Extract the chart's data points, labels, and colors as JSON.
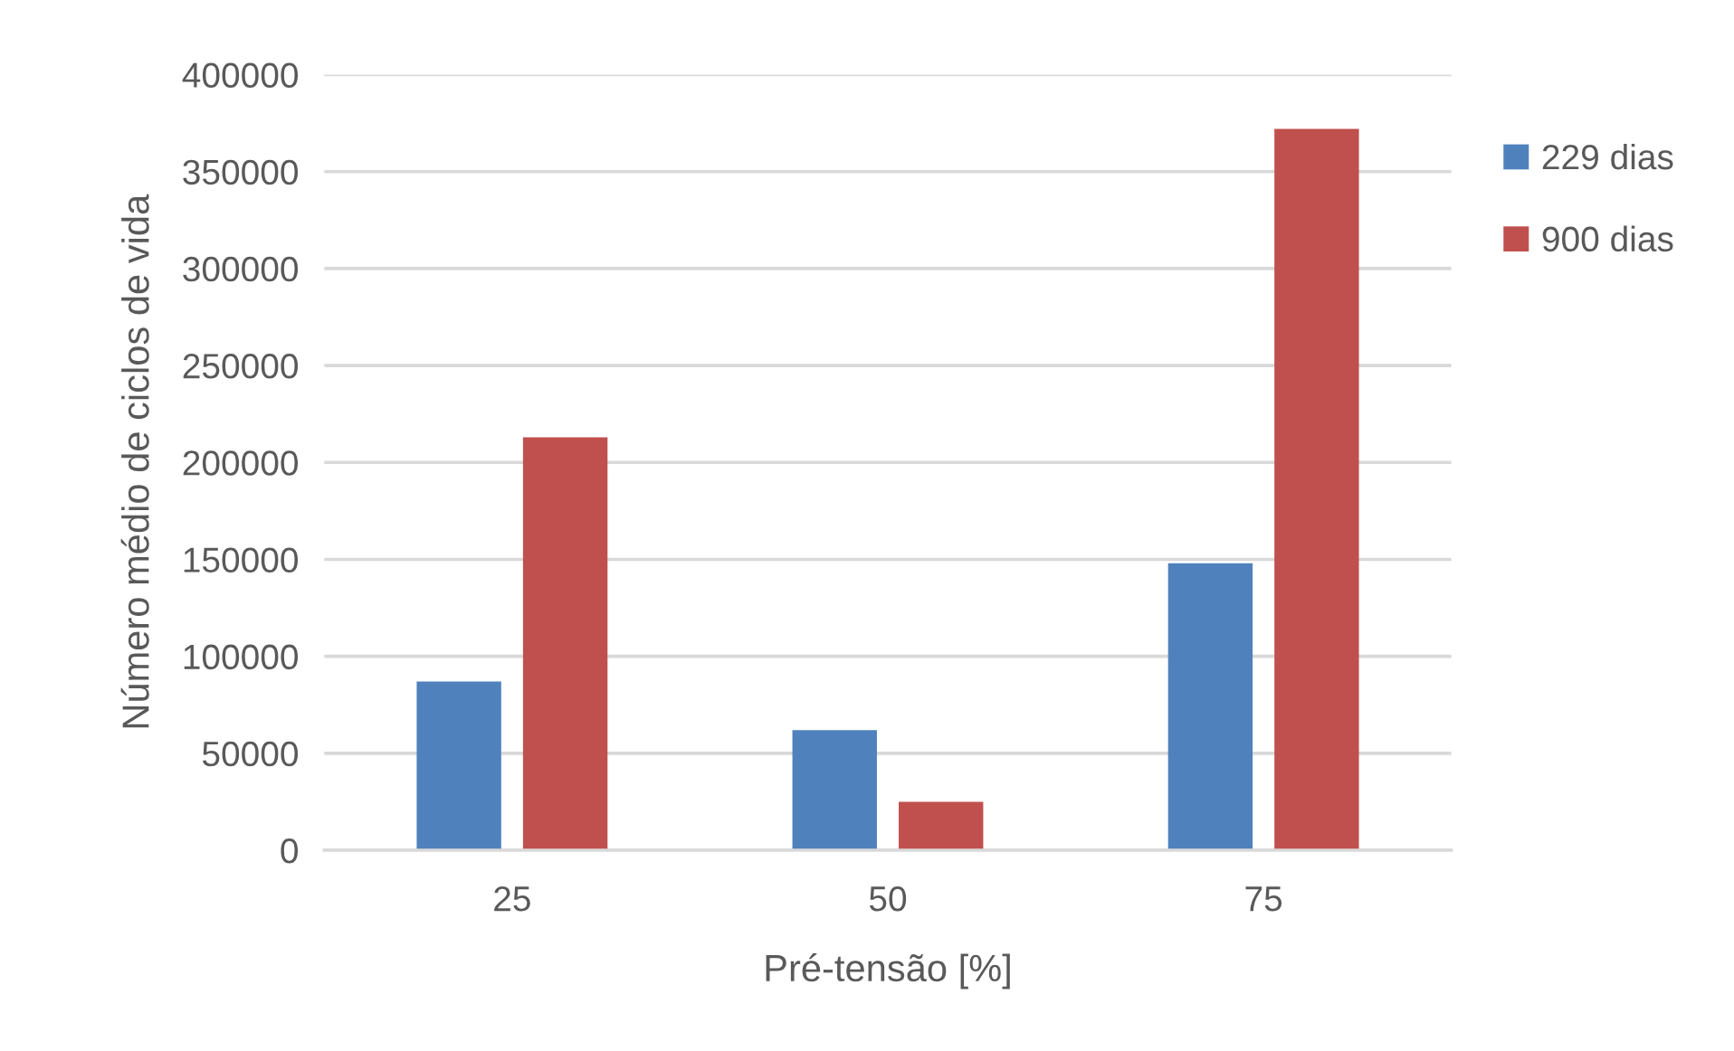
{
  "chart_data": {
    "type": "bar",
    "xlabel": "Pré-tensão [%]",
    "ylabel": "Número médio de ciclos de vida",
    "categories": [
      "25",
      "50",
      "75"
    ],
    "series": [
      {
        "name": "229 dias",
        "color": "#4f81bd",
        "values": [
          87000,
          62000,
          148000
        ]
      },
      {
        "name": "900 dias",
        "color": "#c0504d",
        "values": [
          213000,
          25000,
          372000
        ]
      }
    ],
    "ylim": [
      0,
      400000
    ],
    "yticks": [
      0,
      50000,
      100000,
      150000,
      200000,
      250000,
      300000,
      350000,
      400000
    ],
    "grid": "y",
    "legend": "top right"
  }
}
